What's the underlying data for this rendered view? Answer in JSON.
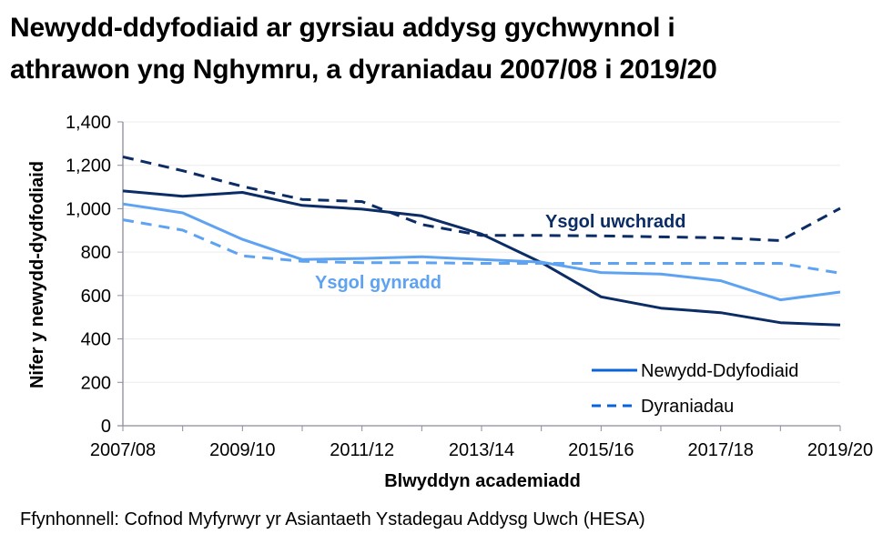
{
  "title": {
    "line1": "Newydd-ddyfodiaid ar gyrsiau addysg gychwynnol i",
    "line2": "athrawon yng Nghymru, a dyraniadau 2007/08 i 2019/20"
  },
  "source": "Ffynhonnell: Cofnod Myfyrwyr yr Asiantaeth Ystadegau Addysg Uwch (HESA)",
  "annotations": {
    "secondary": "Ysgol uwchradd",
    "primary": "Ysgol gynradd"
  },
  "legend": {
    "solid": "Newydd-Ddyfodiaid",
    "dashed": "Dyraniadau"
  },
  "colors": {
    "secondary": "#0b2c64",
    "primary": "#5ea2f2",
    "legend": "#0b63d8",
    "axis": "#8c8c9c",
    "grid": "#ececec"
  },
  "chart_data": {
    "type": "line",
    "title": "Newydd-ddyfodiaid ar gyrsiau addysg gychwynnol i athrawon yng Nghymru, a dyraniadau 2007/08 i 2019/20",
    "xlabel": "Blwyddyn academiadd",
    "ylabel": "Nifer y newydd-dydfodiaid",
    "ylim": [
      0,
      1400
    ],
    "yticks": [
      "0",
      "200",
      "400",
      "600",
      "800",
      "1,000",
      "1,200",
      "1,400"
    ],
    "grid": true,
    "legend_position": "lower right",
    "categories": [
      "2007/08",
      "2008/09",
      "2009/10",
      "2010/11",
      "2011/12",
      "2012/13",
      "2013/14",
      "2014/15",
      "2015/16",
      "2016/17",
      "2017/18",
      "2018/19",
      "2019/20"
    ],
    "xtick_labels": [
      "2007/08",
      "2009/10",
      "2011/12",
      "2013/14",
      "2015/16",
      "2017/18",
      "2019/20"
    ],
    "series": [
      {
        "name": "Newydd-Ddyfodiaid - Ysgol uwchradd",
        "style": "solid",
        "color": "#0b2c64",
        "values": [
          1082,
          1057,
          1075,
          1015,
          998,
          967,
          883,
          752,
          594,
          542,
          521,
          475,
          464
        ]
      },
      {
        "name": "Dyraniadau - Ysgol uwchradd",
        "style": "dashed",
        "color": "#0b2c64",
        "values": [
          1239,
          1175,
          1103,
          1043,
          1033,
          927,
          877,
          877,
          875,
          870,
          866,
          853,
          1002
        ]
      },
      {
        "name": "Newydd-Ddyfodiaid - Ysgol gynradd",
        "style": "solid",
        "color": "#5ea2f2",
        "values": [
          1022,
          981,
          859,
          766,
          771,
          779,
          766,
          754,
          706,
          699,
          668,
          580,
          616
        ]
      },
      {
        "name": "Dyraniadau - Ysgol gynradd",
        "style": "dashed",
        "color": "#5ea2f2",
        "values": [
          949,
          901,
          783,
          758,
          751,
          751,
          748,
          748,
          748,
          748,
          748,
          748,
          703
        ]
      }
    ],
    "annotations": [
      {
        "text": "Ysgol uwchradd",
        "color": "#0b2c64"
      },
      {
        "text": "Ysgol gynradd",
        "color": "#5ea2f2"
      }
    ]
  }
}
